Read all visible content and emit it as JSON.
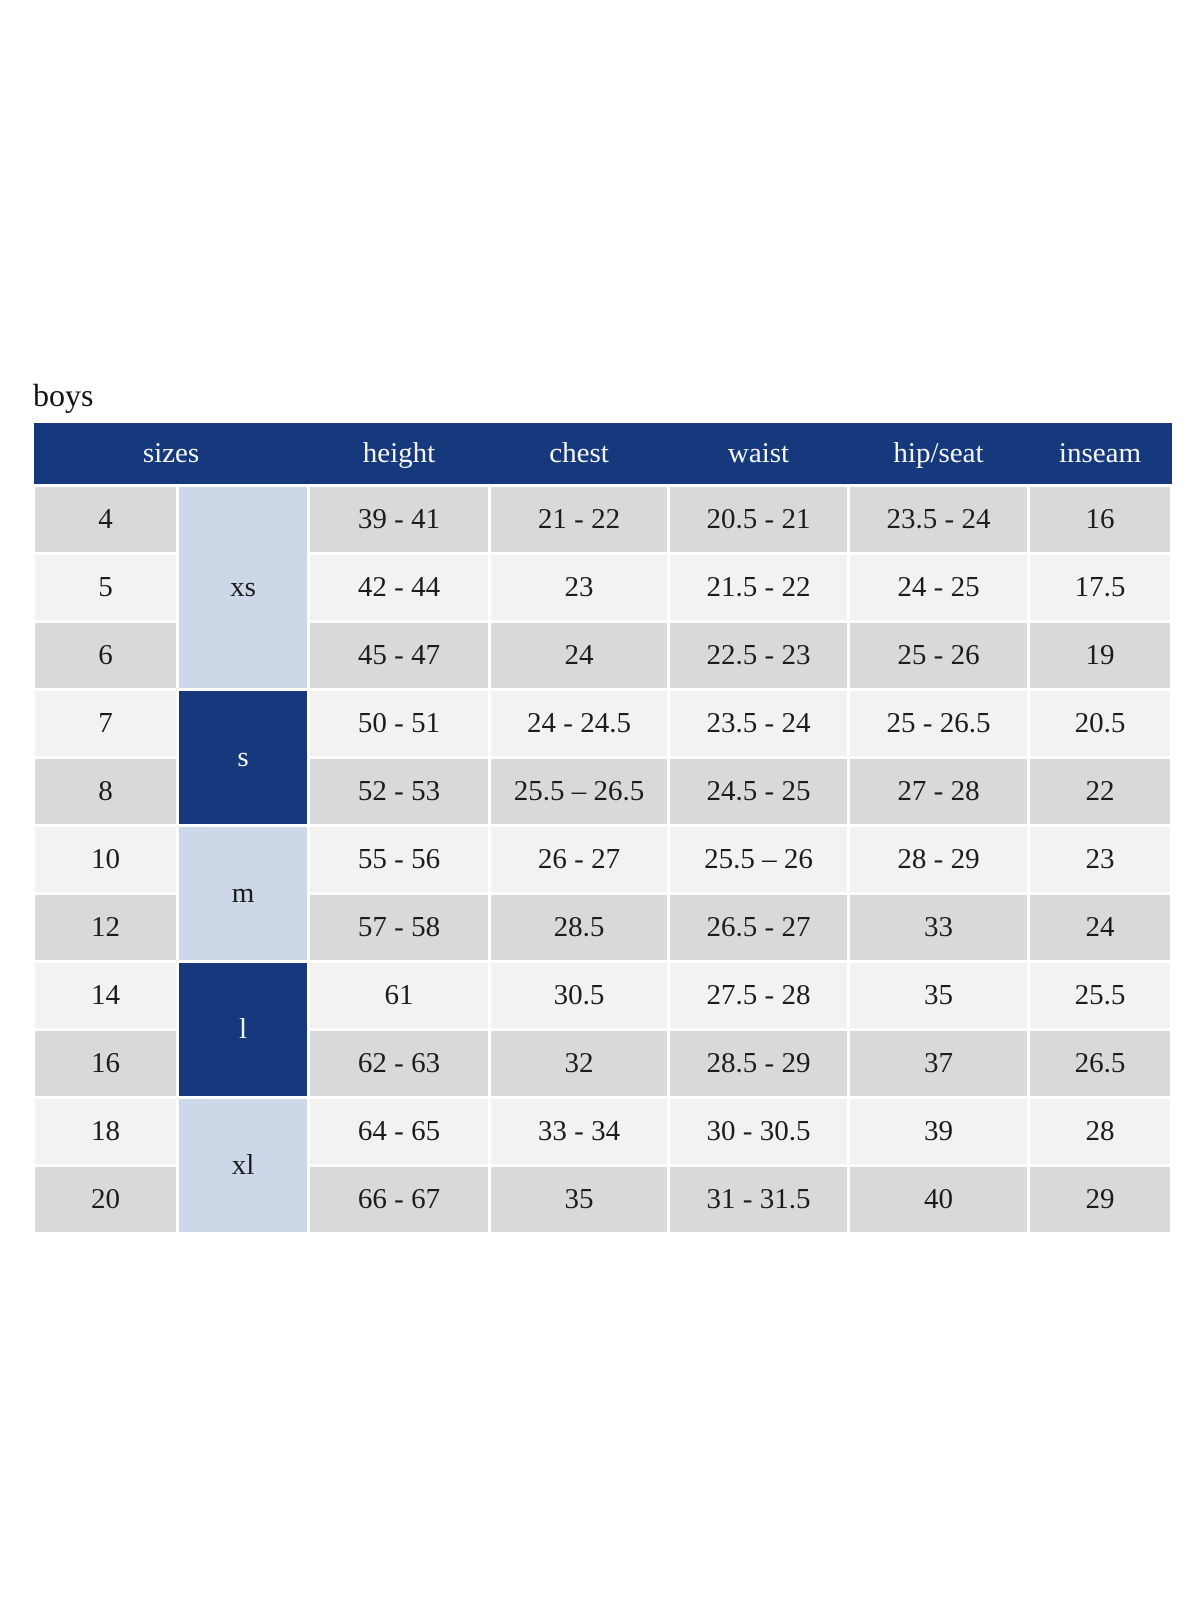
{
  "page": {
    "title": "boys"
  },
  "colors": {
    "header_navy": "#15397c",
    "group_light_blue": "#ccd7e8",
    "row_gray": "#d9d9d9",
    "row_light": "#f2f2f1",
    "header_text": "#f6f6f6",
    "body_text": "#1c1c1c",
    "gap_white": "#ffffff"
  },
  "table": {
    "header": {
      "sizes_label": "sizes",
      "cols": [
        "height",
        "chest",
        "waist",
        "hip/seat",
        "inseam"
      ]
    },
    "groups": [
      {
        "label": "xs",
        "tone": "light",
        "size_count": 3
      },
      {
        "label": "s",
        "tone": "dark",
        "size_count": 2
      },
      {
        "label": "m",
        "tone": "light",
        "size_count": 2
      },
      {
        "label": "l",
        "tone": "dark",
        "size_count": 2
      },
      {
        "label": "xl",
        "tone": "light",
        "size_count": 2
      }
    ],
    "rows": [
      {
        "size": "4",
        "cells": [
          "39 - 41",
          "21 - 22",
          "20.5 - 21",
          "23.5 - 24",
          "16"
        ]
      },
      {
        "size": "5",
        "cells": [
          "42 - 44",
          "23",
          "21.5 - 22",
          "24 - 25",
          "17.5"
        ]
      },
      {
        "size": "6",
        "cells": [
          "45 - 47",
          "24",
          "22.5 - 23",
          "25 - 26",
          "19"
        ]
      },
      {
        "size": "7",
        "cells": [
          "50 - 51",
          "24 - 24.5",
          "23.5 - 24",
          "25 - 26.5",
          "20.5"
        ]
      },
      {
        "size": "8",
        "cells": [
          "52 - 53",
          "25.5 – 26.5",
          "24.5 - 25",
          "27 - 28",
          "22"
        ]
      },
      {
        "size": "10",
        "cells": [
          "55 - 56",
          "26 - 27",
          "25.5 – 26",
          "28 - 29",
          "23"
        ]
      },
      {
        "size": "12",
        "cells": [
          "57 - 58",
          "28.5",
          "26.5 - 27",
          "33",
          "24"
        ]
      },
      {
        "size": "14",
        "cells": [
          "61",
          "30.5",
          "27.5 - 28",
          "35",
          "25.5"
        ]
      },
      {
        "size": "16",
        "cells": [
          "62 - 63",
          "32",
          "28.5 - 29",
          "37",
          "26.5"
        ]
      },
      {
        "size": "18",
        "cells": [
          "64 - 65",
          "33 - 34",
          "30 - 30.5",
          "39",
          "28"
        ]
      },
      {
        "size": "20",
        "cells": [
          "66 - 67",
          "35",
          "31 - 31.5",
          "40",
          "29"
        ]
      }
    ]
  }
}
